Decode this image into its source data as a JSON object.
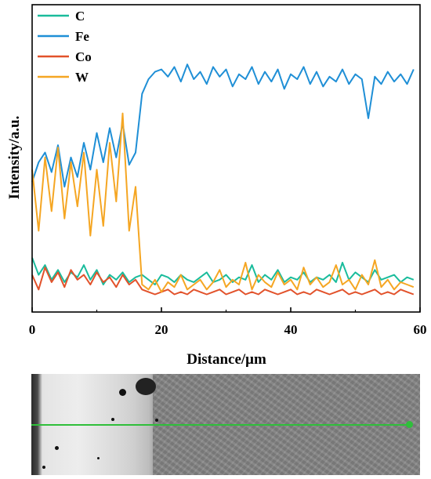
{
  "chart_data": {
    "type": "line",
    "xlabel": "Distance/μm",
    "ylabel": "Intensity/a.u.",
    "xlim": [
      0,
      60
    ],
    "ylim": [
      0,
      100
    ],
    "xticks": [
      0,
      20,
      40,
      60
    ],
    "legend_position": "top-left",
    "grid": false,
    "series": [
      {
        "name": "C",
        "color": "#1abc9c",
        "x": [
          0,
          1,
          2,
          3,
          4,
          5,
          6,
          7,
          8,
          9,
          10,
          11,
          12,
          13,
          14,
          15,
          16,
          17,
          18,
          19,
          20,
          21,
          22,
          23,
          24,
          25,
          26,
          27,
          28,
          29,
          30,
          31,
          32,
          33,
          34,
          35,
          36,
          37,
          38,
          39,
          40,
          41,
          42,
          43,
          44,
          45,
          46,
          47,
          48,
          49,
          50,
          51,
          52,
          53,
          54,
          55,
          56,
          57,
          58,
          59
        ],
        "values": [
          19,
          12,
          16,
          10,
          14,
          9,
          13,
          11,
          16,
          10,
          14,
          8,
          12,
          10,
          13,
          9,
          11,
          12,
          10,
          8,
          12,
          11,
          9,
          12,
          10,
          9,
          11,
          13,
          9,
          10,
          12,
          9,
          11,
          10,
          16,
          9,
          12,
          10,
          14,
          9,
          11,
          10,
          13,
          9,
          11,
          10,
          12,
          9,
          17,
          10,
          13,
          11,
          9,
          14,
          10,
          11,
          12,
          9,
          11,
          10
        ]
      },
      {
        "name": "Fe",
        "color": "#1f8fd6",
        "x": [
          0,
          1,
          2,
          3,
          4,
          5,
          6,
          7,
          8,
          9,
          10,
          11,
          12,
          13,
          14,
          15,
          16,
          17,
          18,
          19,
          20,
          21,
          22,
          23,
          24,
          25,
          26,
          27,
          28,
          29,
          30,
          31,
          32,
          33,
          34,
          35,
          36,
          37,
          38,
          39,
          40,
          41,
          42,
          43,
          44,
          45,
          46,
          47,
          48,
          49,
          50,
          51,
          52,
          53,
          54,
          55,
          56,
          57,
          58,
          59
        ],
        "values": [
          50,
          58,
          62,
          54,
          65,
          48,
          60,
          52,
          66,
          55,
          70,
          58,
          72,
          60,
          74,
          57,
          62,
          86,
          92,
          95,
          96,
          93,
          97,
          91,
          98,
          92,
          95,
          90,
          97,
          93,
          96,
          89,
          94,
          92,
          97,
          90,
          95,
          91,
          96,
          88,
          94,
          92,
          97,
          90,
          95,
          89,
          93,
          91,
          96,
          90,
          94,
          92,
          76,
          93,
          90,
          95,
          91,
          94,
          90,
          96
        ]
      },
      {
        "name": "Co",
        "color": "#e2522b",
        "x": [
          0,
          1,
          2,
          3,
          4,
          5,
          6,
          7,
          8,
          9,
          10,
          11,
          12,
          13,
          14,
          15,
          16,
          17,
          18,
          19,
          20,
          21,
          22,
          23,
          24,
          25,
          26,
          27,
          28,
          29,
          30,
          31,
          32,
          33,
          34,
          35,
          36,
          37,
          38,
          39,
          40,
          41,
          42,
          43,
          44,
          45,
          46,
          47,
          48,
          49,
          50,
          51,
          52,
          53,
          54,
          55,
          56,
          57,
          58,
          59
        ],
        "values": [
          12,
          6,
          15,
          9,
          13,
          7,
          14,
          10,
          12,
          8,
          13,
          9,
          11,
          7,
          12,
          8,
          10,
          6,
          5,
          4,
          5,
          6,
          4,
          5,
          4,
          6,
          5,
          4,
          5,
          6,
          4,
          5,
          6,
          4,
          5,
          4,
          6,
          5,
          4,
          5,
          6,
          4,
          5,
          4,
          6,
          5,
          4,
          5,
          6,
          4,
          5,
          4,
          5,
          6,
          4,
          5,
          4,
          6,
          5,
          4
        ]
      },
      {
        "name": "W",
        "color": "#f5a623",
        "x": [
          0,
          1,
          2,
          3,
          4,
          5,
          6,
          7,
          8,
          9,
          10,
          11,
          12,
          13,
          14,
          15,
          16,
          17,
          18,
          19,
          20,
          21,
          22,
          23,
          24,
          25,
          26,
          27,
          28,
          29,
          30,
          31,
          32,
          33,
          34,
          35,
          36,
          37,
          38,
          39,
          40,
          41,
          42,
          43,
          44,
          45,
          46,
          47,
          48,
          49,
          50,
          51,
          52,
          53,
          54,
          55,
          56,
          57,
          58,
          59
        ],
        "values": [
          55,
          30,
          60,
          38,
          64,
          35,
          58,
          40,
          62,
          28,
          55,
          32,
          66,
          42,
          78,
          30,
          48,
          8,
          6,
          10,
          5,
          9,
          7,
          12,
          6,
          8,
          10,
          6,
          9,
          14,
          7,
          10,
          8,
          17,
          6,
          12,
          9,
          7,
          13,
          8,
          10,
          6,
          15,
          8,
          11,
          7,
          9,
          16,
          8,
          10,
          6,
          12,
          8,
          18,
          7,
          10,
          6,
          9,
          8,
          7
        ]
      }
    ]
  },
  "micrograph": {
    "scan_line_color": "#2fbf3a"
  }
}
